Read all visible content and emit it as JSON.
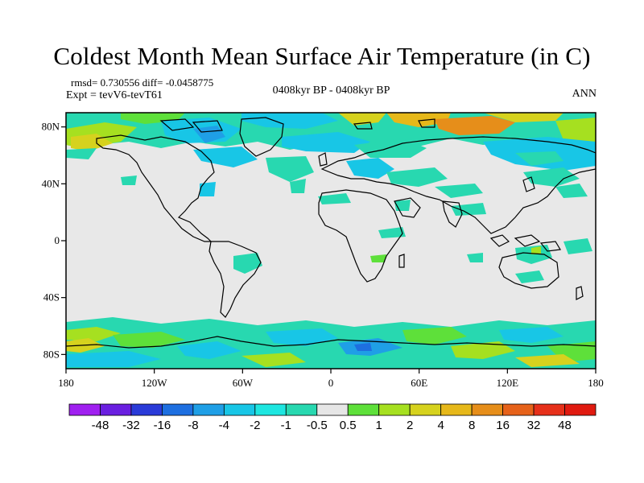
{
  "title": "Coldest Month Mean Surface Air Temperature (in C)",
  "stats": "rmsd= 0.730556  diff= -0.0458775",
  "experiment": "Expt = tevV6-tevT61",
  "period": "0408kyr BP - 0408kyr BP",
  "season": "ANN",
  "lon_ticks": [
    "180",
    "120W",
    "60W",
    "0",
    "60E",
    "120E",
    "180"
  ],
  "lat_ticks": [
    "80N",
    "40N",
    "0",
    "40S",
    "80S"
  ],
  "map": {
    "projection": "cylindrical-equidistant",
    "lon_range": [
      -180,
      180
    ],
    "lat_range": [
      -90,
      90
    ],
    "background_fill": "#e8e8e8",
    "ocean_fill": "#ffffff",
    "coastline_color": "#000000"
  },
  "colorbar": {
    "labels": [
      "-48",
      "-32",
      "-16",
      "-8",
      "-4",
      "-2",
      "-1",
      "-0.5",
      "0.5",
      "1",
      "2",
      "4",
      "8",
      "16",
      "32",
      "48"
    ],
    "colors": [
      "#a020f0",
      "#6a1fe0",
      "#2a3bd8",
      "#1e6fe0",
      "#1f9fe6",
      "#18c6e6",
      "#1ee6e0",
      "#28d8b0",
      "#e6e6e6",
      "#5ee03a",
      "#a6e020",
      "#d6d21e",
      "#e6b81a",
      "#e68e1a",
      "#e6621a",
      "#e6301a",
      "#e01a10"
    ]
  }
}
